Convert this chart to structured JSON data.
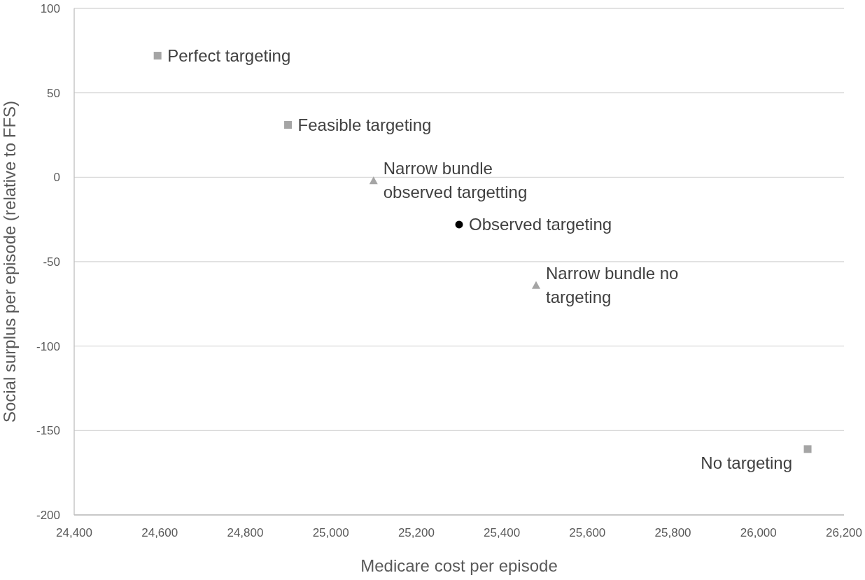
{
  "chart_data": {
    "type": "scatter",
    "xlabel": "Medicare cost per episode",
    "ylabel": "Social surplus per episode (relative to FFS)",
    "xlim": [
      24400,
      26200
    ],
    "xticks": [
      {
        "value": 24400,
        "label": "24,400"
      },
      {
        "value": 24600,
        "label": "24,600"
      },
      {
        "value": 24800,
        "label": "24,800"
      },
      {
        "value": 25000,
        "label": "25,000"
      },
      {
        "value": 25200,
        "label": "25,200"
      },
      {
        "value": 25400,
        "label": "25,400"
      },
      {
        "value": 25600,
        "label": "25,600"
      },
      {
        "value": 25800,
        "label": "25,800"
      },
      {
        "value": 26000,
        "label": "26,000"
      },
      {
        "value": 26200,
        "label": "26,200"
      }
    ],
    "ylim": [
      -200,
      100
    ],
    "yticks": [
      -200,
      -150,
      -100,
      -50,
      0,
      50,
      100
    ],
    "grid": "y",
    "series": [
      {
        "name": "Perfect targeting",
        "color": "#a5a5a5",
        "marker": "square",
        "x": [
          24595
        ],
        "values": [
          72
        ]
      },
      {
        "name": "Feasible targeting",
        "color": "#a5a5a5",
        "marker": "square",
        "x": [
          24900
        ],
        "values": [
          31
        ]
      },
      {
        "name": "Narrow bundle\nobserved targetting",
        "color": "#a5a5a5",
        "marker": "triangle",
        "x": [
          25100
        ],
        "values": [
          -2
        ]
      },
      {
        "name": "Observed targeting",
        "color": "#000000",
        "marker": "circle",
        "x": [
          25300
        ],
        "values": [
          -28
        ]
      },
      {
        "name": "Narrow bundle no\ntargeting",
        "color": "#a5a5a5",
        "marker": "triangle",
        "x": [
          25480
        ],
        "values": [
          -64
        ]
      },
      {
        "name": "No targeting",
        "color": "#a5a5a5",
        "marker": "square",
        "x": [
          26115
        ],
        "values": [
          -161
        ]
      }
    ]
  }
}
